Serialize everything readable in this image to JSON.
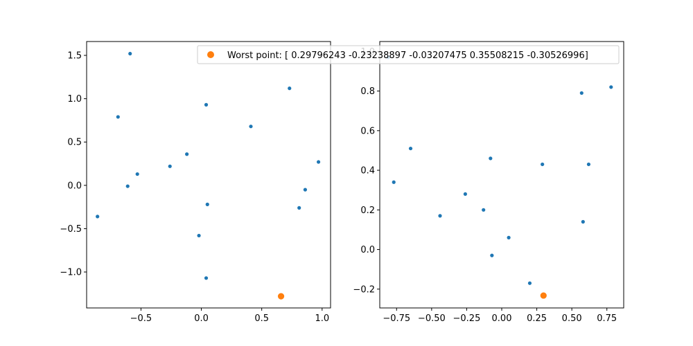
{
  "legend": {
    "label": "Worst point: [ 0.29796243 -0.23238897 -0.03207475  0.35508215 -0.30526996]",
    "color": "#ff7f0e"
  },
  "chart_data": [
    {
      "type": "scatter",
      "xlim": [
        -0.95,
        1.07
      ],
      "ylim": [
        -1.415,
        1.66
      ],
      "xticks": [
        -0.5,
        0.0,
        0.5,
        1.0
      ],
      "xtick_labels": [
        "−0.5",
        "0.0",
        "0.5",
        "1.0"
      ],
      "yticks": [
        -1.0,
        -0.5,
        0.0,
        0.5,
        1.0,
        1.5
      ],
      "ytick_labels": [
        "−1.0",
        "−0.5",
        "0.0",
        "0.5",
        "1.0",
        "1.5"
      ],
      "grid": false,
      "series": [
        {
          "color": "#1f77b4",
          "points": [
            [
              -0.59,
              1.52
            ],
            [
              0.73,
              1.12
            ],
            [
              0.04,
              0.93
            ],
            [
              -0.69,
              0.79
            ],
            [
              0.41,
              0.68
            ],
            [
              -0.12,
              0.36
            ],
            [
              0.97,
              0.27
            ],
            [
              -0.26,
              0.22
            ],
            [
              -0.53,
              0.13
            ],
            [
              -0.61,
              -0.01
            ],
            [
              0.86,
              -0.05
            ],
            [
              0.05,
              -0.22
            ],
            [
              0.81,
              -0.26
            ],
            [
              -0.86,
              -0.36
            ],
            [
              -0.02,
              -0.58
            ],
            [
              0.04,
              -1.07
            ]
          ]
        },
        {
          "color": "#ff7f0e",
          "points": [
            [
              0.66,
              -1.28
            ]
          ]
        }
      ]
    },
    {
      "type": "scatter",
      "xlim": [
        -0.87,
        0.87
      ],
      "ylim": [
        -0.295,
        1.05
      ],
      "xticks": [
        -0.75,
        -0.5,
        -0.25,
        0.0,
        0.25,
        0.5,
        0.75
      ],
      "xtick_labels": [
        "−0.75",
        "−0.50",
        "−0.25",
        "0.00",
        "0.25",
        "0.50",
        "0.75"
      ],
      "yticks": [
        -0.2,
        0.0,
        0.2,
        0.4,
        0.6,
        0.8,
        1.0
      ],
      "ytick_labels": [
        "−0.2",
        "0.0",
        "0.2",
        "0.4",
        "0.6",
        "0.8",
        "1.0"
      ],
      "grid": false,
      "series": [
        {
          "color": "#1f77b4",
          "points": [
            [
              -0.81,
              0.97
            ],
            [
              0.78,
              0.82
            ],
            [
              0.57,
              0.79
            ],
            [
              -0.65,
              0.51
            ],
            [
              -0.08,
              0.46
            ],
            [
              0.29,
              0.43
            ],
            [
              0.62,
              0.43
            ],
            [
              -0.77,
              0.34
            ],
            [
              -0.26,
              0.28
            ],
            [
              -0.13,
              0.2
            ],
            [
              -0.44,
              0.17
            ],
            [
              0.58,
              0.14
            ],
            [
              0.05,
              0.06
            ],
            [
              -0.07,
              -0.03
            ],
            [
              0.2,
              -0.17
            ]
          ]
        },
        {
          "color": "#ff7f0e",
          "points": [
            [
              0.29796243,
              -0.23238897
            ]
          ]
        }
      ]
    }
  ]
}
